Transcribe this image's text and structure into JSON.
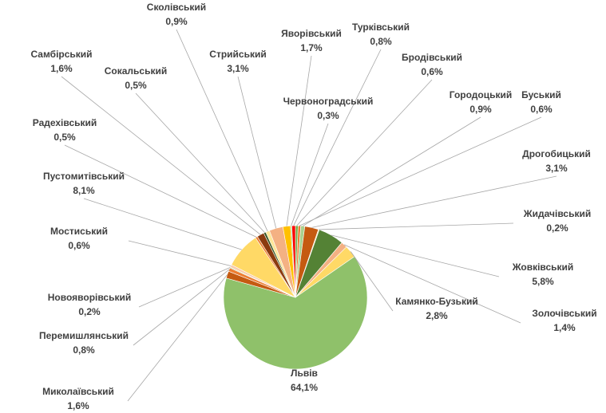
{
  "chart_data": {
    "type": "pie",
    "start_angle_deg": 0,
    "direction": "clockwise",
    "slices": [
      {
        "name": "Бродівський",
        "value": 0.6,
        "label": "0,6%",
        "color": "#70ad47"
      },
      {
        "name": "Буський",
        "value": 0.6,
        "label": "0,6%",
        "color": "#ed7d31"
      },
      {
        "name": "Городоцький",
        "value": 0.9,
        "label": "0,9%",
        "color": "#a9d18e"
      },
      {
        "name": "Дрогобицький",
        "value": 3.1,
        "label": "3,1%",
        "color": "#c55a11"
      },
      {
        "name": "Жидачівський",
        "value": 0.2,
        "label": "0,2%",
        "color": "#ffe699"
      },
      {
        "name": "Жовківський",
        "value": 5.8,
        "label": "5,8%",
        "color": "#548235"
      },
      {
        "name": "Золочівський",
        "value": 1.4,
        "label": "1,4%",
        "color": "#f4b183"
      },
      {
        "name": "Камянко-Бузький",
        "value": 2.8,
        "label": "2,8%",
        "color": "#ffd966"
      },
      {
        "name": "Львів",
        "value": 64.1,
        "label": "64,1%",
        "color": "#8fc16a"
      },
      {
        "name": "Миколаївський",
        "value": 1.6,
        "label": "1,6%",
        "color": "#c55a11"
      },
      {
        "name": "Перемишлянський",
        "value": 0.8,
        "label": "0,8%",
        "color": "#ed7d31"
      },
      {
        "name": "Новояворівський",
        "value": 0.2,
        "label": "0,2%",
        "color": "#a9d18e"
      },
      {
        "name": "Мостиський",
        "value": 0.6,
        "label": "0,6%",
        "color": "#f8cbad"
      },
      {
        "name": "Пустомитівський",
        "value": 8.1,
        "label": "8,1%",
        "color": "#ffd966"
      },
      {
        "name": "Радехівський",
        "value": 0.5,
        "label": "0,5%",
        "color": "#ed7d31"
      },
      {
        "name": "Самбірський",
        "value": 1.6,
        "label": "1,6%",
        "color": "#8b3a0e"
      },
      {
        "name": "Сокальський",
        "value": 0.5,
        "label": "0,5%",
        "color": "#375623"
      },
      {
        "name": "Сколівський",
        "value": 0.9,
        "label": "0,9%",
        "color": "#ffe699"
      },
      {
        "name": "Стрийський",
        "value": 3.1,
        "label": "3,1%",
        "color": "#f4b183"
      },
      {
        "name": "Яворівський",
        "value": 1.7,
        "label": "1,7%",
        "color": "#ffc000"
      },
      {
        "name": "Червоноградський",
        "value": 0.3,
        "label": "0,3%",
        "color": "#a9d18e"
      },
      {
        "name": "Турківський",
        "value": 0.8,
        "label": "0,8%",
        "color": "#ff0000"
      }
    ]
  }
}
